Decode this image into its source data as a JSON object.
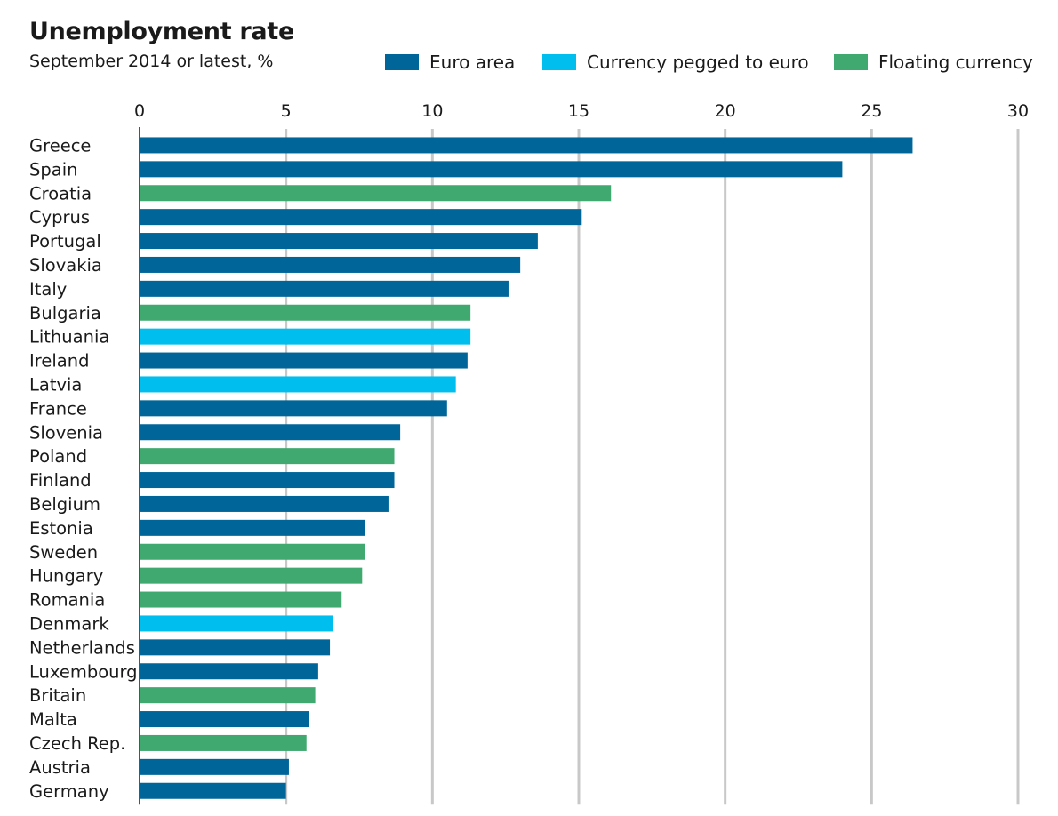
{
  "chart_data": {
    "type": "bar",
    "orientation": "horizontal",
    "title": "Unemployment rate",
    "subtitle": "September 2014 or latest, %",
    "xlim": [
      0,
      30
    ],
    "ticks": [
      0,
      5,
      10,
      15,
      20,
      25,
      30
    ],
    "grid": true,
    "legend_position": "top",
    "legend": [
      {
        "key": "euro",
        "label": "Euro area",
        "color": "#006699"
      },
      {
        "key": "pegged",
        "label": "Currency pegged to euro",
        "color": "#00bfef"
      },
      {
        "key": "floating",
        "label": "Floating currency",
        "color": "#3fa96f"
      }
    ],
    "categories": [
      "Greece",
      "Spain",
      "Croatia",
      "Cyprus",
      "Portugal",
      "Slovakia",
      "Italy",
      "Bulgaria",
      "Lithuania",
      "Ireland",
      "Latvia",
      "France",
      "Slovenia",
      "Poland",
      "Finland",
      "Belgium",
      "Estonia",
      "Sweden",
      "Hungary",
      "Romania",
      "Denmark",
      "Netherlands",
      "Luxembourg",
      "Britain",
      "Malta",
      "Czech Rep.",
      "Austria",
      "Germany"
    ],
    "values": [
      26.4,
      24.0,
      16.1,
      15.1,
      13.6,
      13.0,
      12.6,
      11.3,
      11.3,
      11.2,
      10.8,
      10.5,
      8.9,
      8.7,
      8.7,
      8.5,
      7.7,
      7.7,
      7.6,
      6.9,
      6.6,
      6.5,
      6.1,
      6.0,
      5.8,
      5.7,
      5.1,
      5.0
    ],
    "groups": [
      "euro",
      "euro",
      "floating",
      "euro",
      "euro",
      "euro",
      "euro",
      "floating",
      "pegged",
      "euro",
      "pegged",
      "euro",
      "euro",
      "floating",
      "euro",
      "euro",
      "euro",
      "floating",
      "floating",
      "floating",
      "pegged",
      "euro",
      "euro",
      "floating",
      "euro",
      "floating",
      "euro",
      "euro"
    ]
  }
}
